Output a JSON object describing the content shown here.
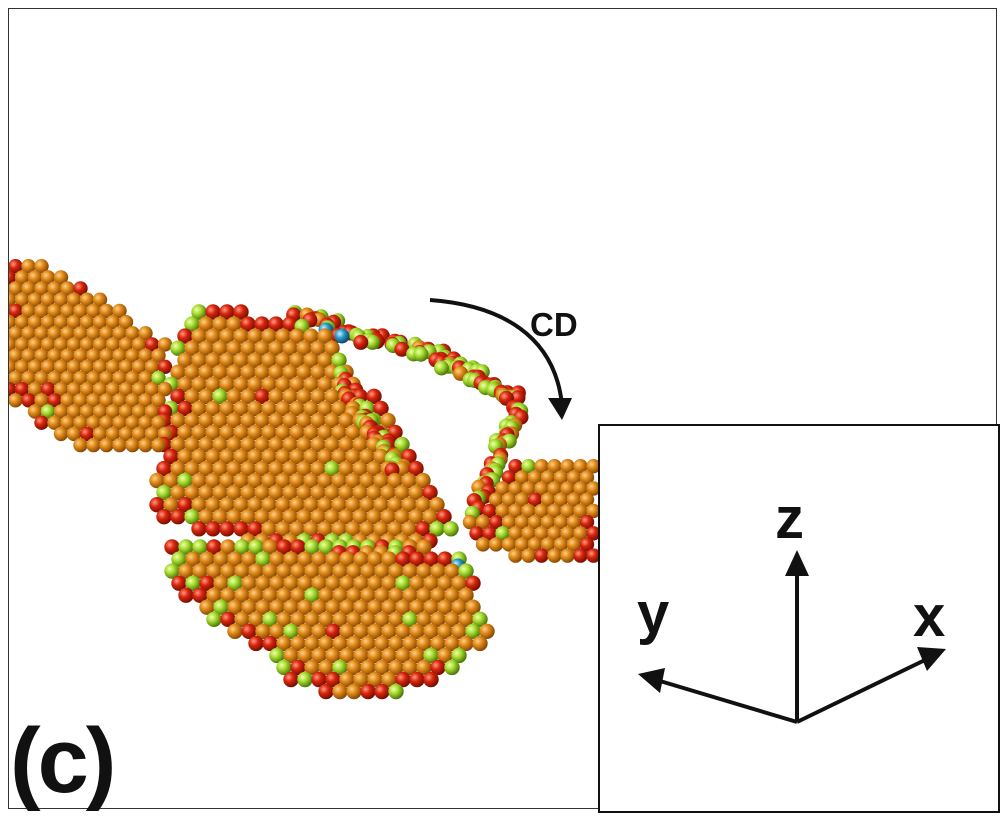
{
  "figure": {
    "panel_label": "(c)",
    "rotation_label": "CD",
    "axes": {
      "z": "z",
      "y": "y",
      "x": "x"
    }
  },
  "colors": {
    "atom_bulk": "#d9800f",
    "atom_surface": "#d62a0d",
    "atom_defect": "#9bdc2a",
    "atom_rare": "#2aa6c8"
  }
}
